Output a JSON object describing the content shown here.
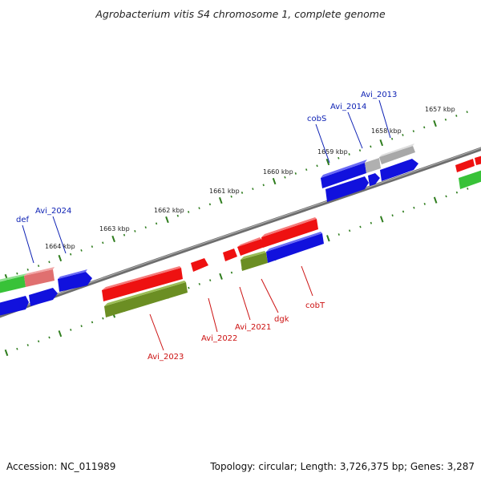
{
  "title": "Agrobacterium vitis S4 chromosome 1, complete genome",
  "accession": "Accession: NC_011989",
  "summary": "Topology: circular; Length: 3,726,375 bp; Genes: 3,287",
  "colors": {
    "backbone": "#777777",
    "tick": "#2f7d1e",
    "forward_label": "#0b1fb3",
    "reverse_label": "#cc1111",
    "red": "#ee1111",
    "blue": "#1111dd",
    "green": "#33bb33",
    "olive": "#668822",
    "pink": "#e07070",
    "gray": "#aaaaaa"
  },
  "scale_labels": [
    "1657 kbp",
    "1658 kbp",
    "1659 kbp",
    "1660 kbp",
    "1661 kbp",
    "1662 kbp",
    "1663 kbp",
    "1664 kbp"
  ],
  "forward_genes": [
    {
      "name": "def",
      "color": "pink"
    },
    {
      "name": "Avi_2024",
      "color": "blue"
    },
    {
      "name": "cobS",
      "color": "blue"
    },
    {
      "name": "Avi_2014",
      "color": "gray"
    },
    {
      "name": "Avi_2013",
      "color": "gray"
    }
  ],
  "reverse_genes": [
    {
      "name": "Avi_2023",
      "color": "red"
    },
    {
      "name": "Avi_2022",
      "color": "red"
    },
    {
      "name": "Avi_2021",
      "color": "red"
    },
    {
      "name": "dgk",
      "color": "olive"
    },
    {
      "name": "cobT",
      "color": "blue"
    }
  ]
}
